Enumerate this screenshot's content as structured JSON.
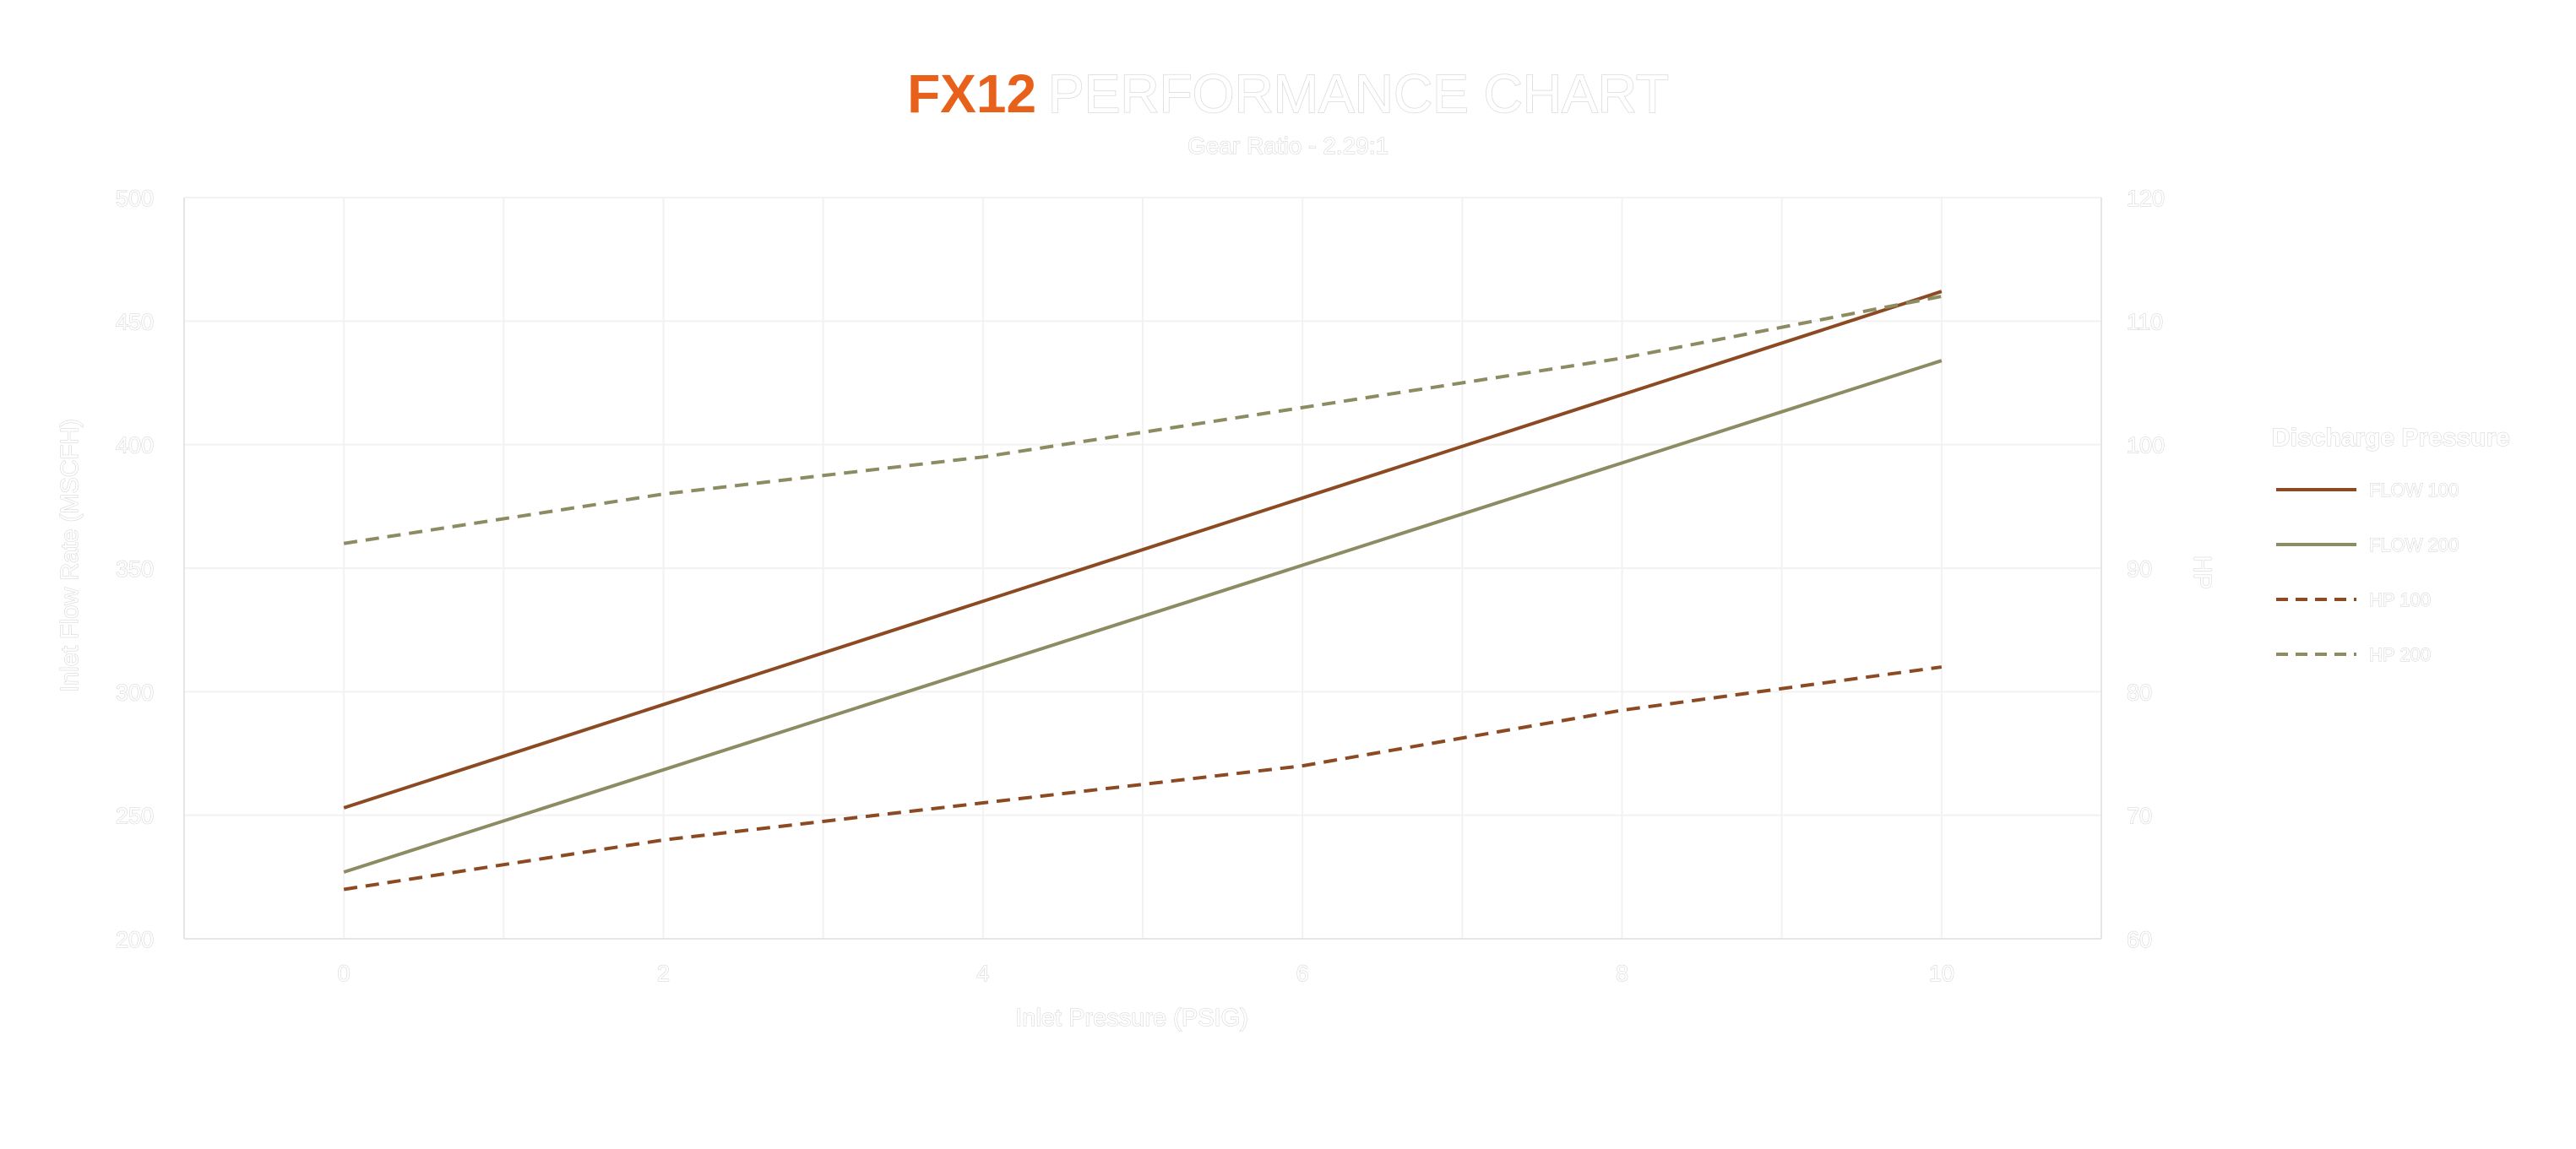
{
  "title": {
    "brand": "FX12",
    "rest": "PERFORMANCE CHART"
  },
  "subtitle": "Gear Ratio - 2.29:1",
  "colors": {
    "brand": "#e8611a",
    "flow100": "#8b4a22",
    "flow200": "#8c8b62",
    "hp100": "#8b4a22",
    "hp200": "#8c8b62",
    "grid": "#f2f2f2",
    "axis": "#e6e6e6"
  },
  "chart_data": {
    "type": "line",
    "xlabel": "Inlet Pressure (PSIG)",
    "ylabel_left": "Inlet Flow Rate (MSCFH)",
    "ylabel_right": "HP",
    "xlim": [
      -1,
      11
    ],
    "x_ticks": [
      0,
      2,
      4,
      6,
      8,
      10
    ],
    "ylim_left": [
      200,
      500
    ],
    "y_ticks_left": [
      200,
      250,
      300,
      350,
      400,
      450,
      500
    ],
    "ylim_right": [
      60,
      120
    ],
    "y_ticks_right": [
      60,
      70,
      80,
      90,
      100,
      110,
      120
    ],
    "legend_title": "Discharge Pressure",
    "legend_position": "right",
    "grid": true,
    "series": [
      {
        "name": "FLOW 100",
        "axis": "left",
        "style": "solid",
        "x": [
          0,
          10
        ],
        "y": [
          253,
          462
        ]
      },
      {
        "name": "FLOW 200",
        "axis": "left",
        "style": "solid",
        "x": [
          0,
          10
        ],
        "y": [
          227,
          434
        ]
      },
      {
        "name": "HP 100",
        "axis": "right",
        "style": "dashed",
        "x": [
          0,
          2,
          4,
          6,
          8,
          10
        ],
        "y": [
          64,
          68,
          71,
          74,
          78.5,
          82
        ]
      },
      {
        "name": "HP 200",
        "axis": "right",
        "style": "dashed",
        "x": [
          0,
          2,
          4,
          6,
          8,
          10
        ],
        "y": [
          92,
          96,
          99,
          103,
          107,
          112
        ]
      }
    ]
  }
}
